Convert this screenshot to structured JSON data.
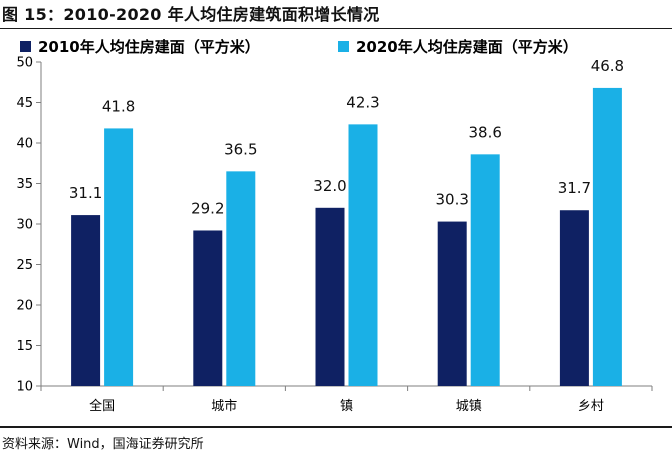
{
  "figure": {
    "title": "图 15：2010-2020 年人均住房建筑面积增长情况",
    "source": "资料来源：Wind，国海证券研究所"
  },
  "colors": {
    "series_2010": "#0f2163",
    "series_2020": "#1ab0e6",
    "axis": "#7f7f7f"
  },
  "chart_data": {
    "type": "bar",
    "title": "2010-2020 年人均住房建筑面积增长情况",
    "xlabel": "",
    "ylabel": "",
    "categories": [
      "全国",
      "城市",
      "镇",
      "城镇",
      "乡村"
    ],
    "series": [
      {
        "name": "2010年人均住房建面（平方米）",
        "values": [
          31.1,
          29.2,
          32.0,
          30.3,
          31.7
        ]
      },
      {
        "name": "2020年人均住房建面（平方米）",
        "values": [
          41.8,
          36.5,
          42.3,
          38.6,
          46.8
        ]
      }
    ],
    "labels": [
      [
        "31.1",
        "29.2",
        "32.0",
        "30.3",
        "31.7"
      ],
      [
        "41.8",
        "36.5",
        "42.3",
        "38.6",
        "46.8"
      ]
    ],
    "ylim": [
      10,
      50
    ],
    "yticks": [
      "10",
      "15",
      "20",
      "25",
      "30",
      "35",
      "40",
      "45",
      "50"
    ],
    "legend_position": "top",
    "grid": false
  }
}
